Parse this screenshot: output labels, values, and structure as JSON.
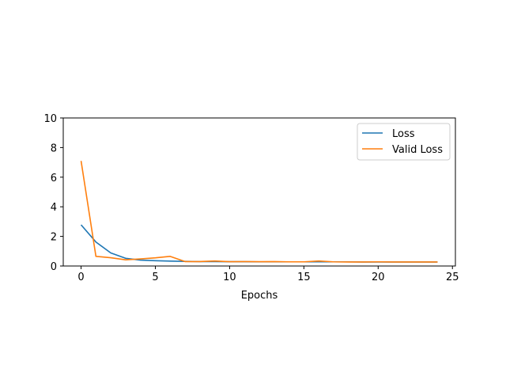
{
  "chart_data": {
    "type": "line",
    "title": "",
    "xlabel": "Epochs",
    "ylabel": "",
    "xlim": [
      -1.2,
      25.2
    ],
    "ylim": [
      0,
      10
    ],
    "xticks": [
      0,
      5,
      10,
      15,
      20,
      25
    ],
    "yticks": [
      0,
      2,
      4,
      6,
      8,
      10
    ],
    "grid": false,
    "legend_position": "upper right",
    "x": [
      0,
      1,
      2,
      3,
      4,
      5,
      6,
      7,
      8,
      9,
      10,
      11,
      12,
      13,
      14,
      15,
      16,
      17,
      18,
      19,
      20,
      21,
      22,
      23,
      24
    ],
    "series": [
      {
        "name": "Loss",
        "color": "#1f77b4",
        "values": [
          2.78,
          1.62,
          0.88,
          0.52,
          0.4,
          0.36,
          0.33,
          0.31,
          0.3,
          0.3,
          0.29,
          0.29,
          0.28,
          0.28,
          0.28,
          0.28,
          0.28,
          0.28,
          0.28,
          0.27,
          0.27,
          0.27,
          0.27,
          0.27,
          0.27
        ]
      },
      {
        "name": "Valid Loss",
        "color": "#ff7f0e",
        "values": [
          7.1,
          0.65,
          0.56,
          0.42,
          0.48,
          0.55,
          0.65,
          0.3,
          0.3,
          0.34,
          0.29,
          0.3,
          0.29,
          0.3,
          0.28,
          0.28,
          0.34,
          0.28,
          0.27,
          0.27,
          0.28,
          0.27,
          0.27,
          0.27,
          0.27
        ]
      }
    ]
  }
}
